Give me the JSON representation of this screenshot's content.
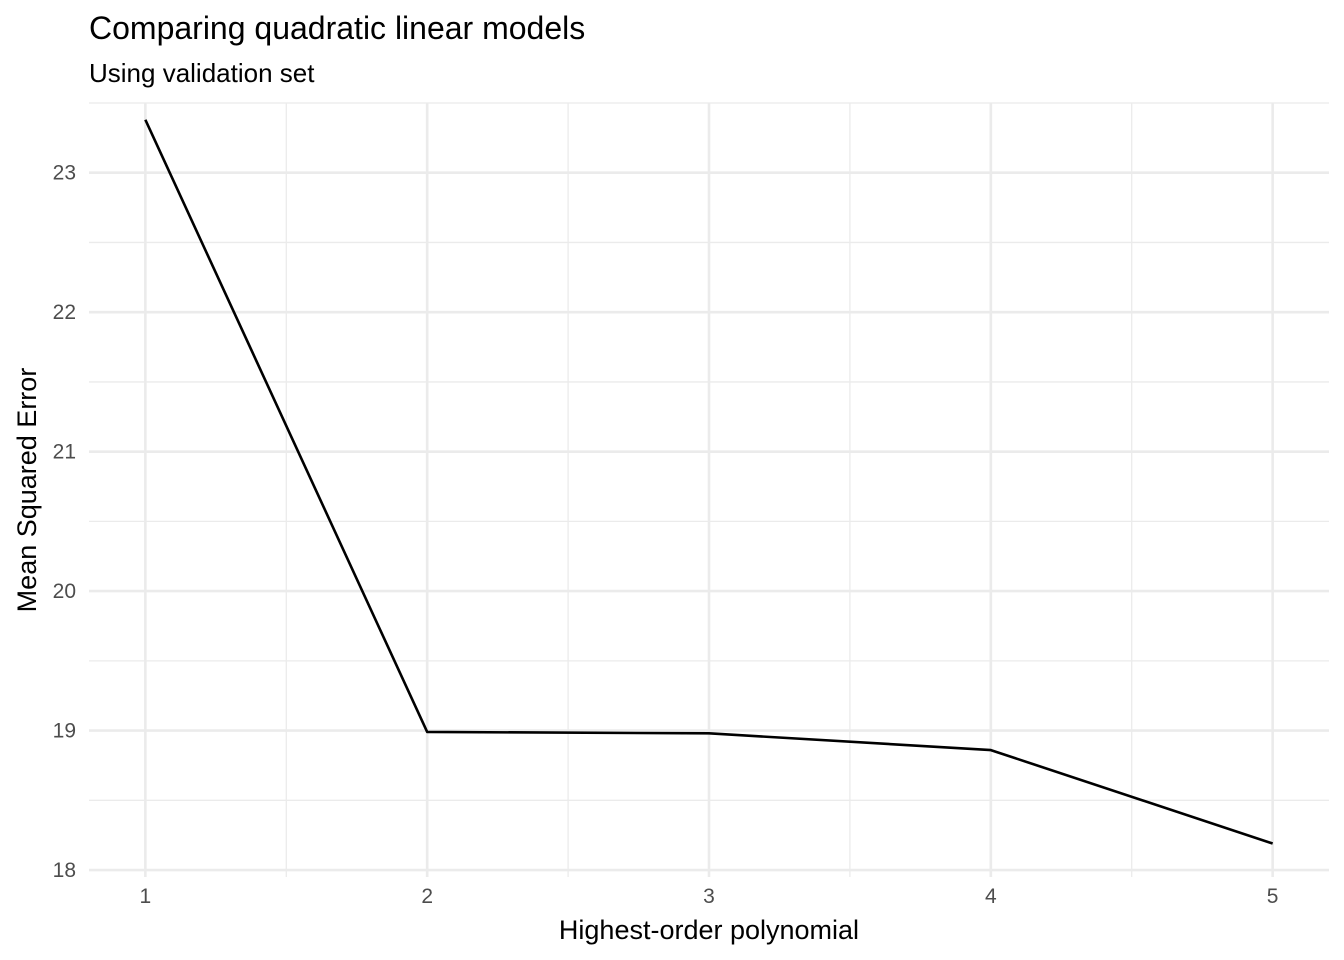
{
  "chart_data": {
    "type": "line",
    "title": "Comparing quadratic linear models",
    "subtitle": "Using validation set",
    "xlabel": "Highest-order polynomial",
    "ylabel": "Mean Squared Error",
    "x": [
      1,
      2,
      3,
      4,
      5
    ],
    "series": [
      {
        "values": [
          23.38,
          18.99,
          18.98,
          18.86,
          18.19
        ]
      }
    ],
    "xticks": [
      "1",
      "2",
      "3",
      "4",
      "5"
    ],
    "yticks": [
      "18",
      "19",
      "20",
      "21",
      "22",
      "23"
    ],
    "xlim": [
      0.8,
      5.2
    ],
    "ylim": [
      17.95,
      23.5
    ],
    "grid": true,
    "line_color": "#000000",
    "grid_color": "#ebebeb"
  }
}
